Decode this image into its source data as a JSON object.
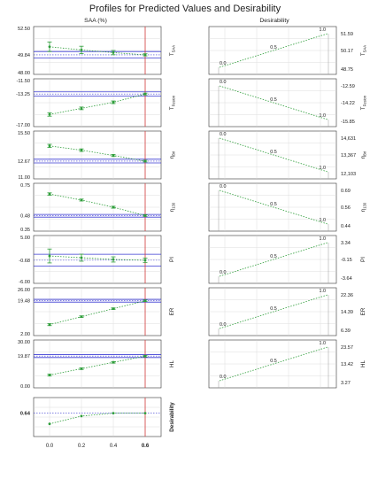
{
  "chart_data": {
    "type": "line",
    "title": "Profiles for Predicted Values and Desirability",
    "left_column_label": "SAA (%)",
    "right_column_label": "Desirability",
    "x_ticks": [
      "0.0",
      "0.2",
      "0.4",
      "0.6"
    ],
    "x_values": [
      0.0,
      0.2,
      0.4,
      0.6
    ],
    "current_x": 0.6,
    "current_x_label": "0.6",
    "grid": true,
    "colors": {
      "points": "#2e9e3a",
      "current": "#d23a3a",
      "ci_band": "#3a3ad2",
      "grid": "#d6d6d6"
    },
    "rows": [
      {
        "label": "T",
        "sub": "SAA",
        "yticks": [
          "52.50",
          "49.84",
          "48.00"
        ],
        "ylim": [
          48.0,
          52.5
        ],
        "current_value": 49.84,
        "band": [
          49.55,
          50.15
        ],
        "points": [
          50.6,
          50.3,
          50.05,
          49.84
        ],
        "errors": [
          0.45,
          0.35,
          0.2,
          0.1
        ],
        "des_direction": "up",
        "des_value_labels": [
          "51.59",
          "50.17",
          "48.75"
        ]
      },
      {
        "label": "T",
        "sub": "Fusion",
        "yticks": [
          "-11.50",
          "-13.25",
          "-17.00"
        ],
        "ylim": [
          -17.0,
          -11.5
        ],
        "current_value": -13.25,
        "band": [
          -13.5,
          -13.0
        ],
        "points": [
          -15.6,
          -14.9,
          -14.2,
          -13.25
        ],
        "errors": [
          0.2,
          0.15,
          0.15,
          0.1
        ],
        "des_direction": "down",
        "des_value_labels": [
          "-12.59",
          "-14.22",
          "-15.85"
        ]
      },
      {
        "label": "η",
        "sub": "Bri",
        "yticks": [
          "15.50",
          "12.67",
          "11.00"
        ],
        "ylim": [
          11.0,
          15.5
        ],
        "current_value": 12.67,
        "band": [
          12.5,
          12.85
        ],
        "points": [
          14.1,
          13.7,
          13.2,
          12.67
        ],
        "errors": [
          0.15,
          0.12,
          0.1,
          0.08
        ],
        "des_direction": "down",
        "des_value_labels": [
          "14,631",
          "13,367",
          "12,103"
        ]
      },
      {
        "label": "η",
        "sub": "130",
        "yticks": [
          "0.75",
          "0.48",
          "0.35"
        ],
        "ylim": [
          0.35,
          0.75
        ],
        "current_value": 0.48,
        "band": [
          0.467,
          0.49
        ],
        "points": [
          0.66,
          0.61,
          0.55,
          0.48
        ],
        "errors": [
          0.01,
          0.008,
          0.008,
          0.006
        ],
        "des_direction": "down",
        "des_value_labels": [
          "0.69",
          "0.56",
          "0.44"
        ]
      },
      {
        "label": "PI",
        "sub": "",
        "yticks": [
          "5.00",
          "-0.68",
          "-6.00"
        ],
        "ylim": [
          -6.0,
          5.0
        ],
        "current_value": -0.68,
        "band": [
          -2.0,
          0.7
        ],
        "points": [
          0.3,
          -0.1,
          -0.5,
          -0.68
        ],
        "errors": [
          1.6,
          0.8,
          0.6,
          0.5
        ],
        "des_direction": "up",
        "des_value_labels": [
          "3.34",
          "-0.15",
          "-3.64"
        ]
      },
      {
        "label": "ER",
        "sub": "",
        "yticks": [
          "26.00",
          "19.48",
          "2.00"
        ],
        "ylim": [
          2.0,
          26.0
        ],
        "current_value": 19.48,
        "band": [
          18.8,
          20.2
        ],
        "points": [
          7.5,
          11.5,
          15.5,
          19.48
        ],
        "errors": [
          0.5,
          0.4,
          0.4,
          0.4
        ],
        "des_direction": "up",
        "des_value_labels": [
          "22.36",
          "14.39",
          "6.39"
        ]
      },
      {
        "label": "HL",
        "sub": "",
        "yticks": [
          "30.00",
          "19.87",
          "0.00"
        ],
        "ylim": [
          0.0,
          30.0
        ],
        "current_value": 19.87,
        "band": [
          19.0,
          20.8
        ],
        "points": [
          8.0,
          12.0,
          16.0,
          19.87
        ],
        "errors": [
          0.6,
          0.5,
          0.5,
          0.5
        ],
        "des_direction": "up",
        "des_value_labels": [
          "23.57",
          "13.42",
          "3.27"
        ]
      }
    ],
    "desirability_labels": {
      "low": "0.0",
      "mid": "0.5",
      "high": "1.0"
    },
    "overall": {
      "label": "Desirability",
      "yticks": [
        "0.64"
      ],
      "ylim": [
        0.4,
        0.8
      ],
      "current_value": 0.64,
      "points": [
        0.53,
        0.61,
        0.64,
        0.64
      ]
    }
  }
}
